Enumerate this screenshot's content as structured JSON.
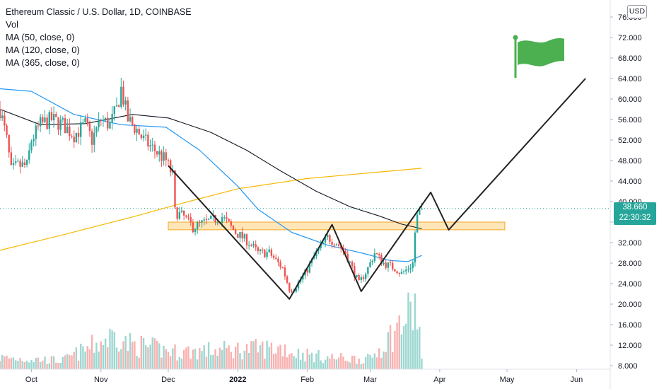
{
  "legend": {
    "title": "Ethereum Classic / U.S. Dollar, 1D, COINBASE",
    "items": [
      "Vol",
      "MA (50, close, 0)",
      "MA (120, close, 0)",
      "MA (365, close, 0)"
    ]
  },
  "currency": "USD",
  "last_price": {
    "value": "38.660",
    "countdown": "22:30:32"
  },
  "colors": {
    "up": "#26a69a",
    "down": "#ef5350",
    "ma50": "#2196f3",
    "ma120": "#131722",
    "ma365": "#f5b800",
    "zone_fill": "#ffe0a6",
    "zone_stroke": "#f5a623",
    "flag": "#4caf50",
    "pattern": "#222222"
  },
  "chart_data": {
    "type": "candlestick",
    "y_ticks": [
      "8.000",
      "12.000",
      "16.000",
      "20.000",
      "24.000",
      "28.000",
      "32.000",
      "36.000",
      "40.000",
      "44.000",
      "48.000",
      "52.000",
      "56.000",
      "60.000",
      "64.000",
      "68.000",
      "72.000",
      "76.000"
    ],
    "ylim": [
      7.5,
      77
    ],
    "x_ticks": [
      {
        "label": "Oct",
        "date": "2021-10-01"
      },
      {
        "label": "Nov",
        "date": "2021-11-01"
      },
      {
        "label": "Dec",
        "date": "2021-12-01"
      },
      {
        "label": "2022",
        "date": "2022-01-01",
        "bold": true
      },
      {
        "label": "Feb",
        "date": "2022-02-01"
      },
      {
        "label": "Mar",
        "date": "2022-03-01"
      },
      {
        "label": "Apr",
        "date": "2022-04-01"
      },
      {
        "label": "May",
        "date": "2022-05-01"
      },
      {
        "label": "Jun",
        "date": "2022-06-01"
      }
    ],
    "xlim": [
      "2021-09-17",
      "2022-06-16"
    ],
    "price_anchors": [
      [
        "2021-09-17",
        58
      ],
      [
        "2021-09-20",
        52
      ],
      [
        "2021-09-22",
        46
      ],
      [
        "2021-09-25",
        47
      ],
      [
        "2021-09-29",
        47
      ],
      [
        "2021-10-01",
        52
      ],
      [
        "2021-10-05",
        55
      ],
      [
        "2021-10-10",
        56
      ],
      [
        "2021-10-15",
        55
      ],
      [
        "2021-10-20",
        53
      ],
      [
        "2021-10-25",
        55
      ],
      [
        "2021-10-28",
        52
      ],
      [
        "2021-11-01",
        56
      ],
      [
        "2021-11-05",
        55
      ],
      [
        "2021-11-08",
        58
      ],
      [
        "2021-11-10",
        62
      ],
      [
        "2021-11-13",
        56
      ],
      [
        "2021-11-17",
        54
      ],
      [
        "2021-11-20",
        52
      ],
      [
        "2021-11-25",
        50
      ],
      [
        "2021-11-30",
        48
      ],
      [
        "2021-12-03",
        45
      ],
      [
        "2021-12-04",
        38
      ],
      [
        "2021-12-08",
        37
      ],
      [
        "2021-12-12",
        35
      ],
      [
        "2021-12-18",
        36
      ],
      [
        "2021-12-25",
        37
      ],
      [
        "2021-12-31",
        34
      ],
      [
        "2022-01-06",
        32
      ],
      [
        "2022-01-10",
        30
      ],
      [
        "2022-01-15",
        30
      ],
      [
        "2022-01-21",
        27
      ],
      [
        "2022-01-24",
        23
      ],
      [
        "2022-01-26",
        23
      ],
      [
        "2022-01-31",
        26
      ],
      [
        "2022-02-05",
        30
      ],
      [
        "2022-02-10",
        33
      ],
      [
        "2022-02-14",
        32
      ],
      [
        "2022-02-18",
        30
      ],
      [
        "2022-02-22",
        26
      ],
      [
        "2022-02-24",
        24
      ],
      [
        "2022-02-28",
        27
      ],
      [
        "2022-03-03",
        30
      ],
      [
        "2022-03-07",
        28
      ],
      [
        "2022-03-12",
        27
      ],
      [
        "2022-03-15",
        26
      ],
      [
        "2022-03-18",
        27
      ],
      [
        "2022-03-20",
        28
      ],
      [
        "2022-03-21",
        34
      ],
      [
        "2022-03-22",
        37
      ],
      [
        "2022-03-24",
        38.66
      ]
    ],
    "volume_anchors": [
      [
        "2021-09-17",
        0.08
      ],
      [
        "2021-10-15",
        0.06
      ],
      [
        "2021-11-09",
        0.25
      ],
      [
        "2021-11-12",
        0.18
      ],
      [
        "2021-12-04",
        0.12
      ],
      [
        "2022-01-22",
        0.15
      ],
      [
        "2022-01-24",
        0.12
      ],
      [
        "2022-02-10",
        0.08
      ],
      [
        "2022-03-01",
        0.07
      ],
      [
        "2022-03-21",
        0.42
      ],
      [
        "2022-03-23",
        0.28
      ],
      [
        "2022-03-24",
        0.05
      ]
    ],
    "ma50_points": [
      [
        "2021-09-17",
        62
      ],
      [
        "2021-10-01",
        61.5
      ],
      [
        "2021-10-20",
        57
      ],
      [
        "2021-11-10",
        55
      ],
      [
        "2021-11-30",
        54.5
      ],
      [
        "2021-12-15",
        50
      ],
      [
        "2022-01-01",
        43
      ],
      [
        "2022-01-10",
        38.5
      ],
      [
        "2022-01-25",
        34
      ],
      [
        "2022-02-10",
        31.5
      ],
      [
        "2022-02-25",
        30
      ],
      [
        "2022-03-10",
        28.5
      ],
      [
        "2022-03-18",
        28.3
      ],
      [
        "2022-03-24",
        29.5
      ]
    ],
    "ma120_points": [
      [
        "2021-09-17",
        58
      ],
      [
        "2021-10-05",
        55
      ],
      [
        "2021-10-25",
        55.2
      ],
      [
        "2021-11-15",
        57
      ],
      [
        "2021-12-01",
        56.3
      ],
      [
        "2021-12-20",
        53.5
      ],
      [
        "2022-01-05",
        50
      ],
      [
        "2022-01-20",
        46
      ],
      [
        "2022-02-05",
        42
      ],
      [
        "2022-02-20",
        39
      ],
      [
        "2022-03-05",
        37.2
      ],
      [
        "2022-03-15",
        35.6
      ],
      [
        "2022-03-24",
        34.7
      ]
    ],
    "ma365_points": [
      [
        "2021-09-17",
        30.5
      ],
      [
        "2021-10-15",
        33.5
      ],
      [
        "2021-11-15",
        37
      ],
      [
        "2021-12-10",
        40
      ],
      [
        "2022-01-01",
        42.5
      ],
      [
        "2022-02-01",
        44.5
      ],
      [
        "2022-03-01",
        45.6
      ],
      [
        "2022-03-24",
        46.5
      ]
    ],
    "resistance_zone": {
      "from": "2021-12-01",
      "to": "2022-04-30",
      "y0": 34.5,
      "y1": 36.0
    },
    "pattern_path": [
      [
        "2021-12-01",
        47
      ],
      [
        "2022-01-24",
        21
      ],
      [
        "2022-02-12",
        35.5
      ],
      [
        "2022-02-25",
        22.5
      ],
      [
        "2022-03-28",
        41.8
      ],
      [
        "2022-04-05",
        34.5
      ],
      [
        "2022-06-05",
        64
      ]
    ]
  }
}
